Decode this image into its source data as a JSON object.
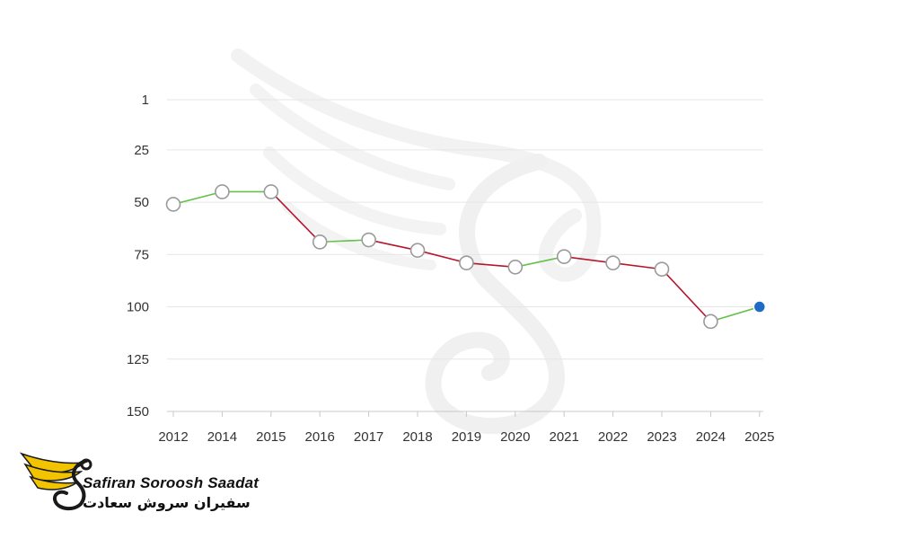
{
  "chart_data": {
    "type": "line",
    "y_reversed": true,
    "ylim": [
      1,
      150
    ],
    "y_ticks": [
      1,
      25,
      50,
      75,
      100,
      125,
      150
    ],
    "categories": [
      "2012",
      "2014",
      "2015",
      "2016",
      "2017",
      "2018",
      "2019",
      "2020",
      "2021",
      "2022",
      "2023",
      "2024",
      "2025"
    ],
    "values": [
      51,
      45,
      45,
      69,
      68,
      73,
      79,
      81,
      76,
      79,
      82,
      107,
      100
    ],
    "grid": true,
    "colors": {
      "rising": "#66c04a",
      "falling": "#b5172d",
      "marker_fill": "#ffffff",
      "marker_stroke": "#9a9a9a",
      "highlight_marker": "#1f6cc6",
      "grid": "#e6e6e6",
      "axis": "#c8c8c8"
    },
    "highlight_index": 12
  },
  "brand": {
    "name_en": "Safiran Soroosh Saadat",
    "name_fa": "سفیران سروش سعادت",
    "logo_icon": "wing-s-logo-icon",
    "watermark_icon": "wing-s-watermark-icon",
    "logo_colors": {
      "wing": "#f2c400",
      "wing_dark": "#1a1a1a"
    }
  }
}
